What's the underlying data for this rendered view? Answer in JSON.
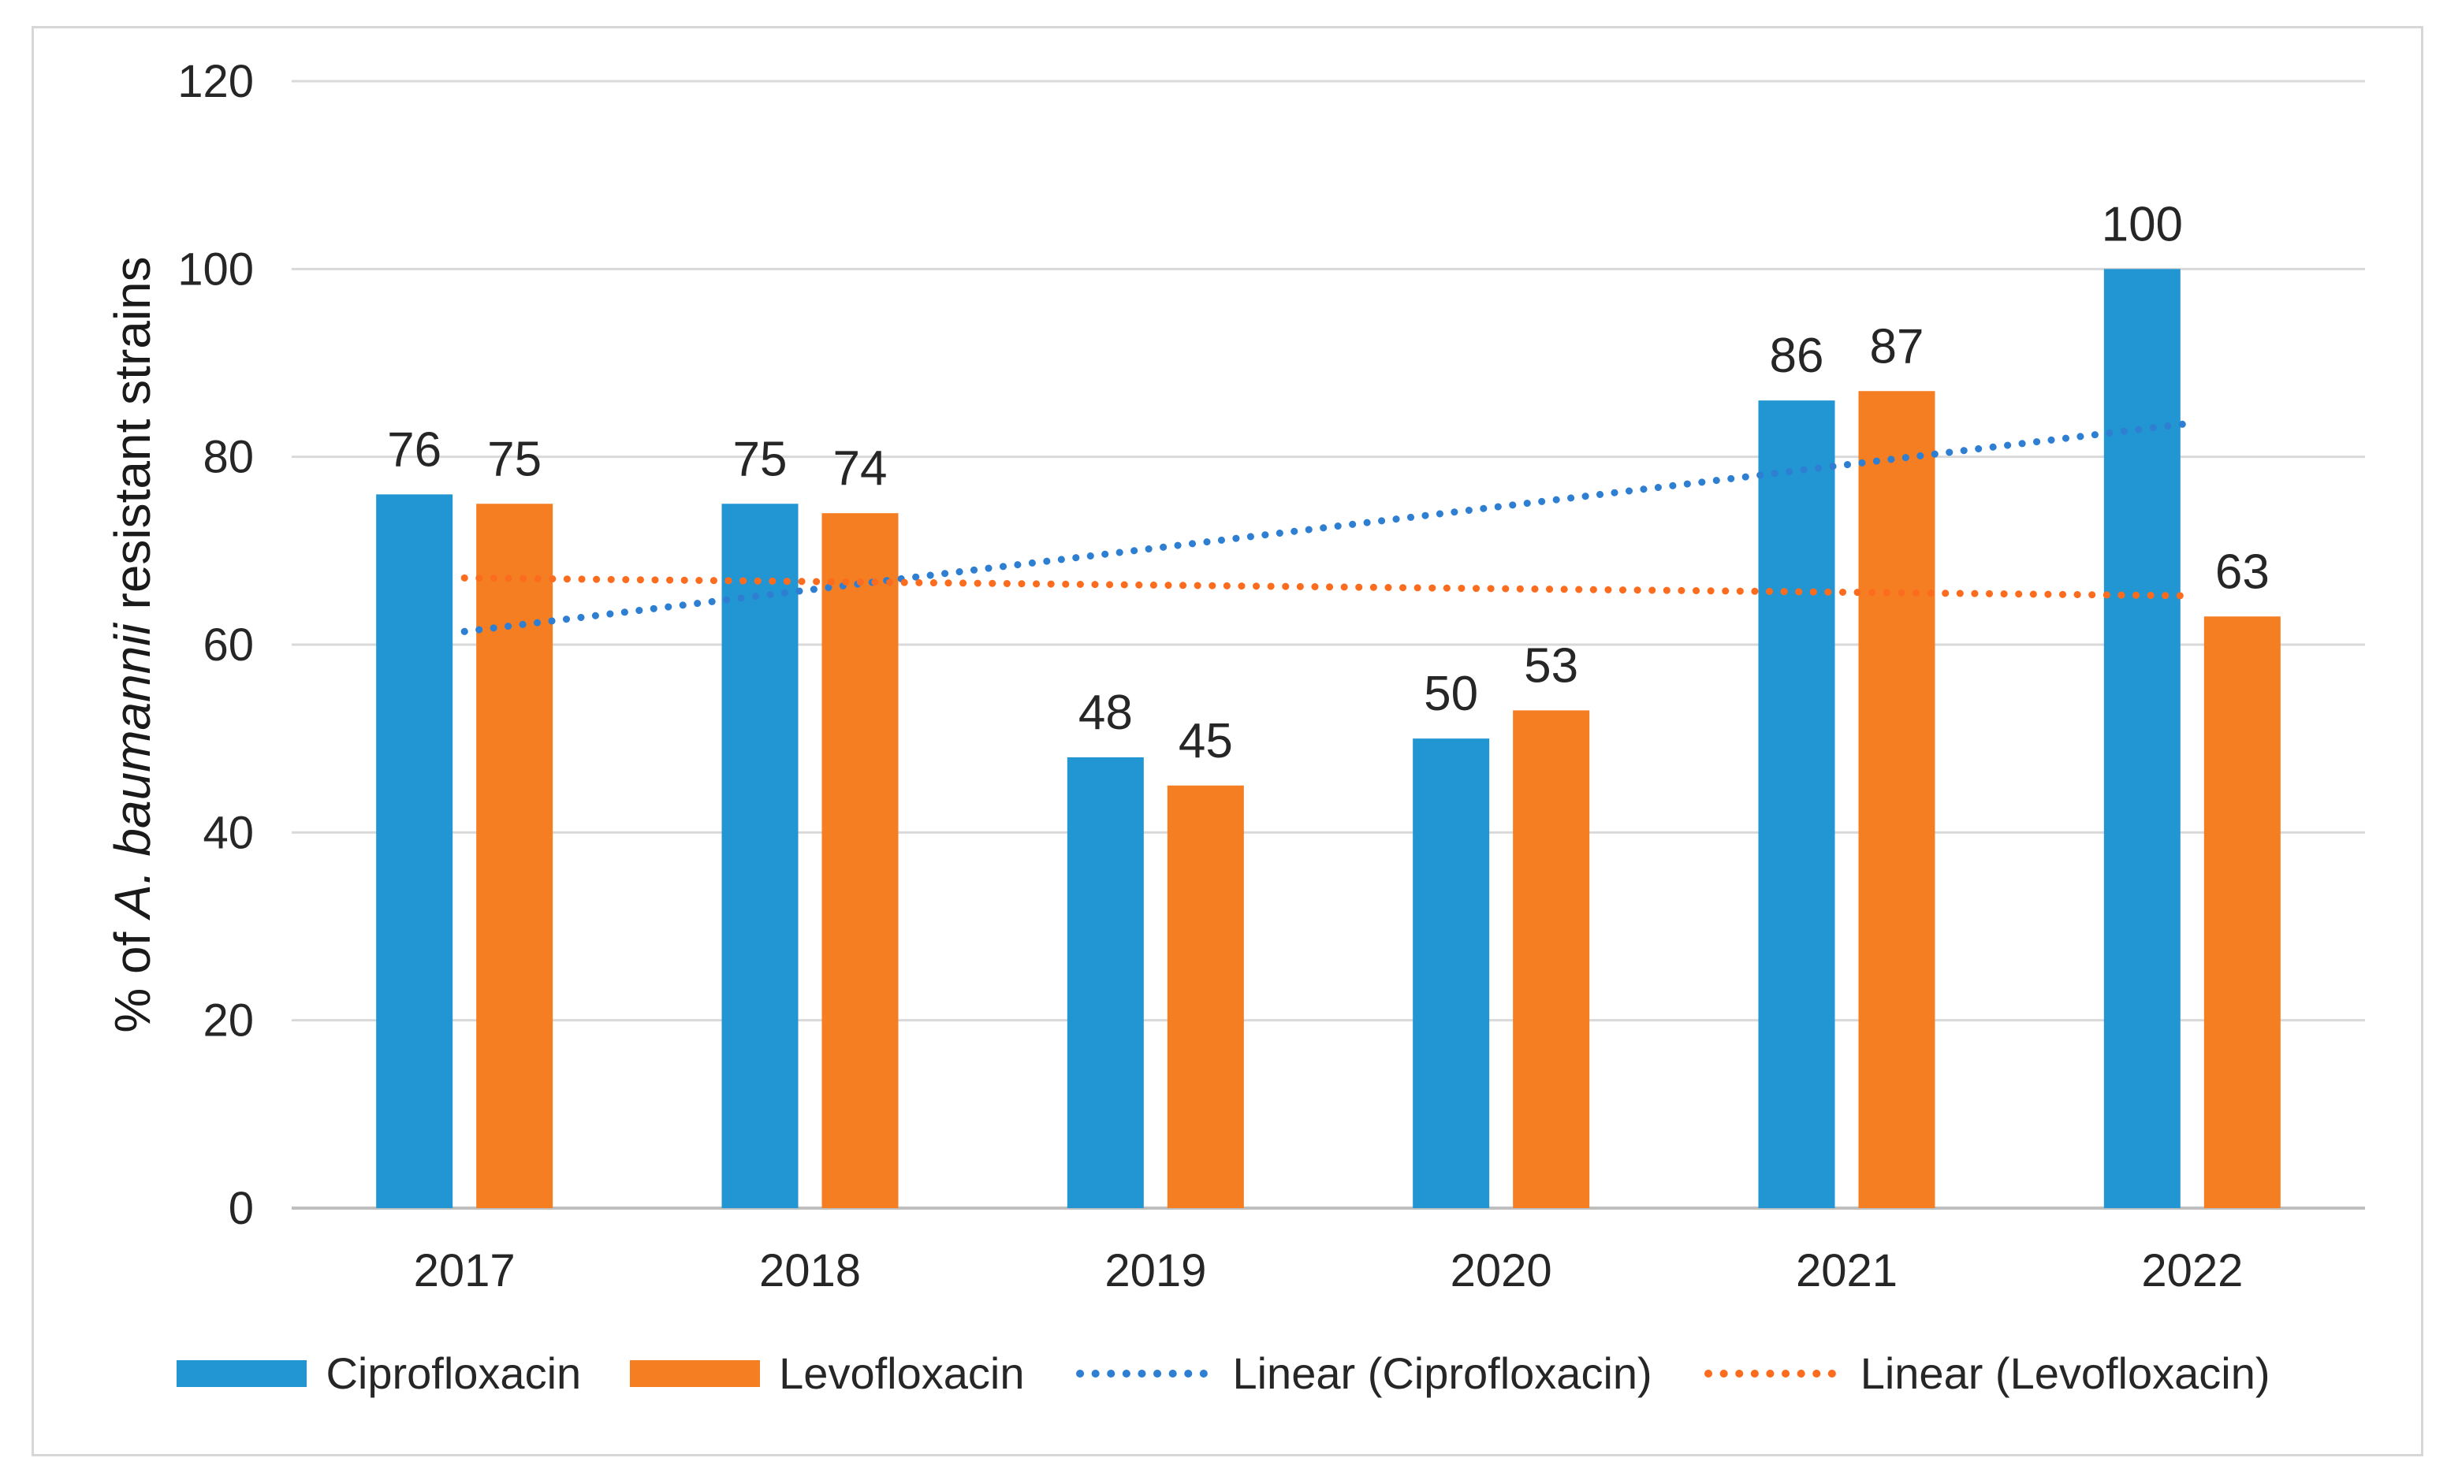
{
  "chart_data": {
    "type": "bar",
    "title": "",
    "categories": [
      "2017",
      "2018",
      "2019",
      "2020",
      "2021",
      "2022"
    ],
    "series": [
      {
        "name": "Ciprofloxacin",
        "color": "#2296D3",
        "values": [
          76,
          75,
          48,
          50,
          86,
          100
        ]
      },
      {
        "name": "Levofloxacin",
        "color": "#F57E22",
        "values": [
          75,
          74,
          45,
          53,
          87,
          63
        ]
      }
    ],
    "trendlines": [
      {
        "name": "Linear (Ciprofloxacin)",
        "color": "#2E7FD2",
        "style": "dotted",
        "start_value": 61.4,
        "end_value": 83.6
      },
      {
        "name": "Linear (Levofloxacin)",
        "color": "#FB6C1E",
        "style": "dotted",
        "start_value": 67.1,
        "end_value": 65.2
      }
    ],
    "ylabel": "% of A. baumannii resistant strains",
    "ylabel_parts": [
      {
        "text": "% of ",
        "italic": false
      },
      {
        "text": "A. baumannii",
        "italic": true
      },
      {
        "text": " resistant strains",
        "italic": false
      }
    ],
    "xlabel": "",
    "ylim": [
      0,
      120
    ],
    "yticks": [
      0,
      20,
      40,
      60,
      80,
      100,
      120
    ],
    "grid": true,
    "data_labels": true,
    "legend_position": "bottom"
  },
  "legend": {
    "items": [
      {
        "label": "Ciprofloxacin",
        "marker": "bar",
        "color": "#2296D3"
      },
      {
        "label": "Levofloxacin",
        "marker": "bar",
        "color": "#F57E22"
      },
      {
        "label": "Linear (Ciprofloxacin)",
        "marker": "dotted-line",
        "color": "#2E7FD2"
      },
      {
        "label": "Linear (Levofloxacin)",
        "marker": "dotted-line",
        "color": "#FB6C1E"
      }
    ]
  },
  "style": {
    "text_color": "#262626",
    "grid_color": "#D9D9D9",
    "axis_color": "#BFBFBF",
    "border_color": "#D7D7D7",
    "background": "#FFFFFF"
  }
}
